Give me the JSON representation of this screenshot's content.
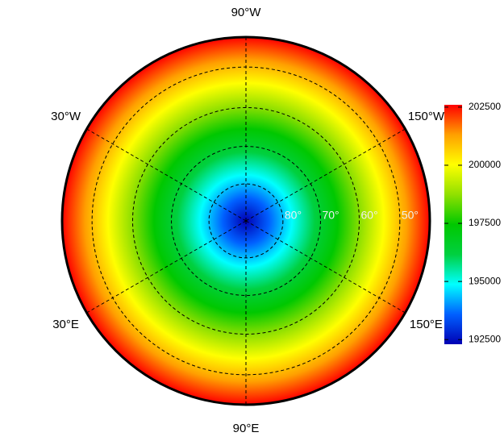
{
  "chart_data": {
    "type": "polar-map",
    "projection": "stereographic",
    "latlim": [
      90,
      43
    ],
    "lonticks": [
      {
        "value": -90,
        "label": "90°W"
      },
      {
        "value": -30,
        "label": "30°W"
      },
      {
        "value": -150,
        "label": "150°W"
      },
      {
        "value": 30,
        "label": "30°E"
      },
      {
        "value": 150,
        "label": "150°E"
      },
      {
        "value": 90,
        "label": "90°E"
      }
    ],
    "latticks": [
      {
        "value": 80,
        "label": "80°"
      },
      {
        "value": 70,
        "label": "70°"
      },
      {
        "value": 60,
        "label": "60°"
      },
      {
        "value": 50,
        "label": "50°"
      }
    ],
    "colorbar": {
      "clim": [
        192300,
        202600
      ],
      "ticks": [
        192500,
        195000,
        197500,
        200000,
        202500
      ],
      "colors": [
        "#0000b4",
        "#0060ff",
        "#00ffff",
        "#00d040",
        "#00c800",
        "#90e000",
        "#ffff00",
        "#ffa000",
        "#ff0000"
      ]
    }
  }
}
